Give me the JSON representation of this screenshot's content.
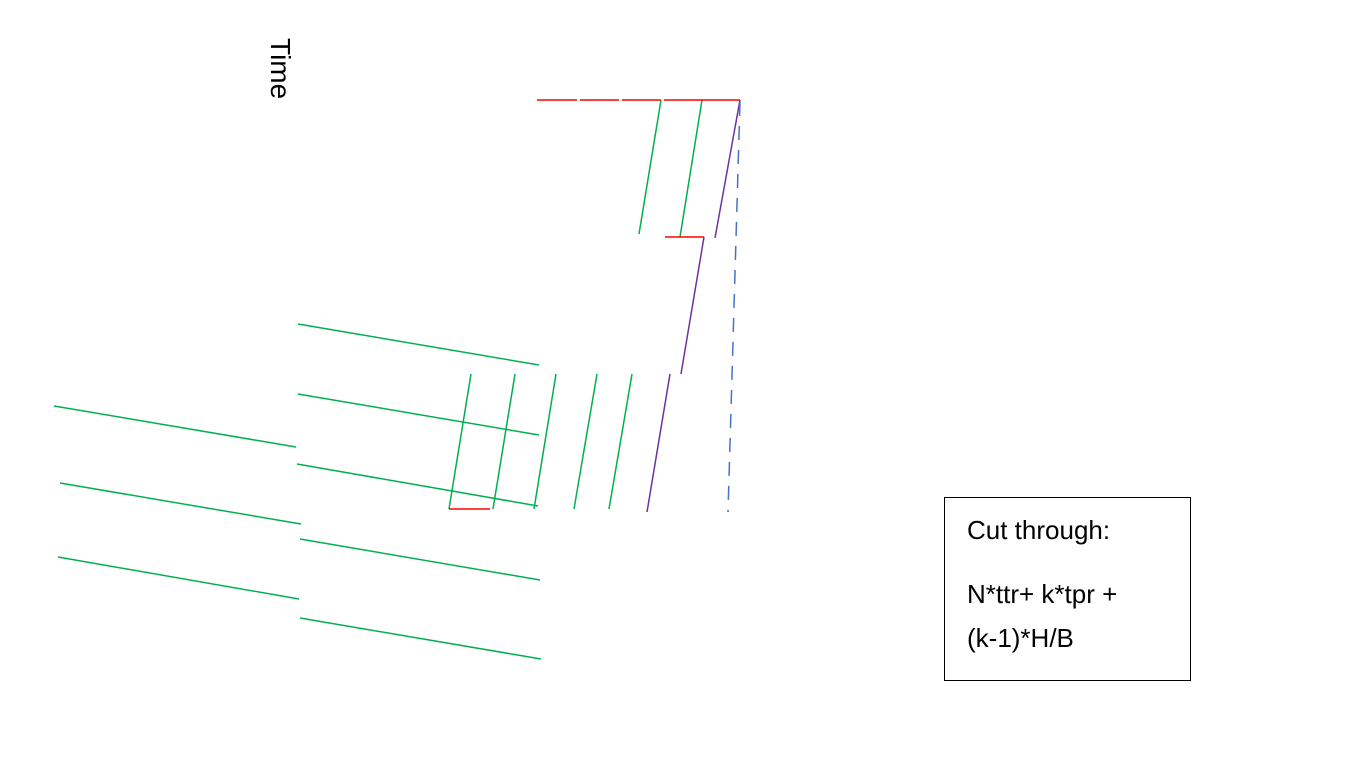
{
  "axis": {
    "time_label": "Time"
  },
  "formula_box": {
    "heading": "Cut through:",
    "line1": "N*ttr+ k*tpr +",
    "line2": "(k-1)*H/B"
  },
  "colors": {
    "green": "#00b050",
    "red": "#ff0000",
    "purple": "#7030a0",
    "blue": "#4472c4",
    "black": "#000000"
  }
}
